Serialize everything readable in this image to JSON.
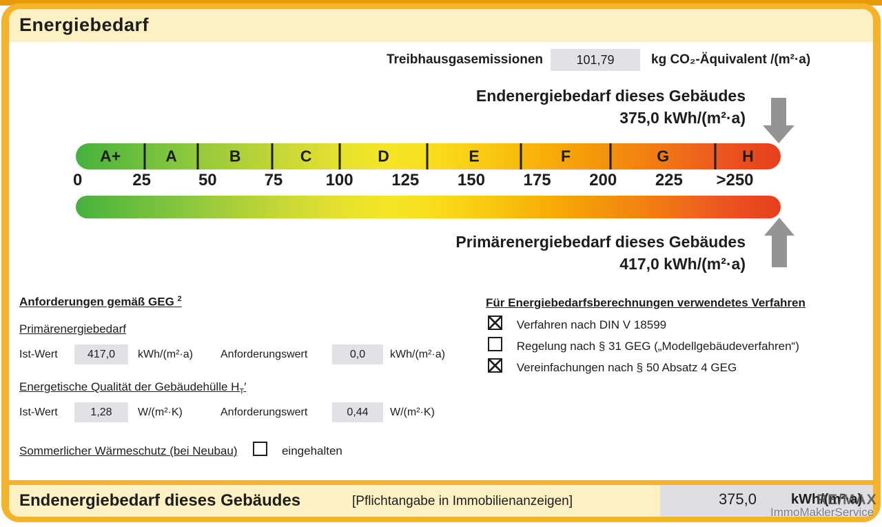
{
  "header": {
    "title": "Energiebedarf"
  },
  "colors": {
    "frame": "#f6b32a",
    "band": "#fdf0c3",
    "value_box": "#e1e1e6",
    "arrow": "#949494",
    "scale_start_green": "#45b13f",
    "scale_mid_yellow": "#f8df1d",
    "scale_end_red": "#e73e1d"
  },
  "ghg": {
    "label": "Treibhausgasemissionen",
    "value": "101,79",
    "unit": "kg CO₂-Äquivalent /(m²·a)"
  },
  "end_energy": {
    "title": "Endenergiebedarf dieses Gebäudes",
    "value_line": "375,0 kWh/(m²·a)"
  },
  "primary_energy": {
    "title": "Primärenergiebedarf dieses Gebäudes",
    "value_line": "417,0 kWh/(m²·a)"
  },
  "scale": {
    "classes": [
      {
        "label": "A+",
        "width": 9.8
      },
      {
        "label": "A",
        "width": 7.5
      },
      {
        "label": "B",
        "width": 10.6
      },
      {
        "label": "C",
        "width": 9.5
      },
      {
        "label": "D",
        "width": 12.5
      },
      {
        "label": "E",
        "width": 13.2
      },
      {
        "label": "F",
        "width": 12.8
      },
      {
        "label": "G",
        "width": 14.8
      },
      {
        "label": "H",
        "width": 9.3
      }
    ],
    "ticks": [
      "0",
      "25",
      "50",
      "75",
      "100",
      "125",
      "150",
      "175",
      "200",
      "225",
      ">250"
    ]
  },
  "chart_data": {
    "type": "scale-bar",
    "title": "Energiebedarf",
    "xlabel": "kWh/(m²·a)",
    "axis_ticks": [
      0,
      25,
      50,
      75,
      100,
      125,
      150,
      175,
      200,
      225,
      250
    ],
    "axis_last_tick_label": ">250",
    "efficiency_classes": [
      "A+",
      "A",
      "B",
      "C",
      "D",
      "E",
      "F",
      "G",
      "H"
    ],
    "markers": [
      {
        "name": "Endenergiebedarf dieses Gebäudes",
        "value": 375.0,
        "unit": "kWh/(m²·a)",
        "class": "H"
      },
      {
        "name": "Primärenergiebedarf dieses Gebäudes",
        "value": 417.0,
        "unit": "kWh/(m²·a)",
        "class": "H"
      }
    ],
    "treibhausgasemissionen": {
      "value": 101.79,
      "unit": "kg CO₂-Äquivalent /(m²·a)"
    }
  },
  "left": {
    "requirements_title": "Anforderungen gemäß GEG",
    "requirements_sup": "2",
    "primary": {
      "title": "Primärenergiebedarf",
      "ist_label": "Ist-Wert",
      "ist_value": "417,0",
      "ist_unit": "kWh/(m²·a)",
      "req_label": "Anforderungswert",
      "req_value": "0,0",
      "req_unit": "kWh/(m²·a)"
    },
    "envelope": {
      "title_pre": "Energetische Qualität der Gebäudehülle H",
      "title_sub": "T",
      "title_post": "′",
      "ist_label": "Ist-Wert",
      "ist_value": "1,28",
      "ist_unit": "W/(m²·K)",
      "req_label": "Anforderungswert",
      "req_value": "0,44",
      "req_unit": "W/(m²·K)"
    },
    "summer": {
      "title": "Sommerlicher Wärmeschutz (bei Neubau)",
      "checkbox_label": "eingehalten",
      "checked": false
    }
  },
  "right": {
    "title": "Für Energiebedarfsberechnungen verwendetes Verfahren",
    "items": [
      {
        "label": "Verfahren nach DIN V 18599",
        "checked": true
      },
      {
        "label": "Regelung nach § 31 GEG („Modellgebäudeverfahren“)",
        "checked": false
      },
      {
        "label": "Vereinfachungen nach § 50 Absatz 4 GEG",
        "checked": true
      }
    ]
  },
  "footer": {
    "title": "Endenergiebedarf dieses Gebäudes",
    "note": "[Pflichtangabe in Immobilienanzeigen]",
    "value": "375,0",
    "unit": "kWh/(m²·a)",
    "watermark_line1": "RE/MAX",
    "watermark_line2": "ImmoMaklerService"
  }
}
